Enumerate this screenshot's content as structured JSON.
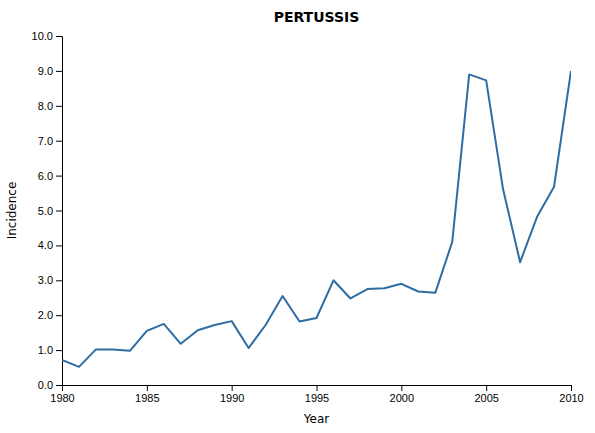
{
  "chart_data": {
    "type": "line",
    "title": "PERTUSSIS",
    "xlabel": "Year",
    "ylabel": "Incidence",
    "color": "#2E6DA4",
    "x": [
      1980,
      1981,
      1982,
      1983,
      1984,
      1985,
      1986,
      1987,
      1988,
      1989,
      1990,
      1991,
      1992,
      1993,
      1994,
      1995,
      1996,
      1997,
      1998,
      1999,
      2000,
      2001,
      2002,
      2003,
      2004,
      2005,
      2006,
      2007,
      2008,
      2009,
      2010
    ],
    "values": [
      0.72,
      0.52,
      1.02,
      1.02,
      0.98,
      1.55,
      1.75,
      1.18,
      1.57,
      1.72,
      1.83,
      1.06,
      1.72,
      2.55,
      1.82,
      1.92,
      3.0,
      2.48,
      2.75,
      2.77,
      2.9,
      2.68,
      2.64,
      4.1,
      8.9,
      8.73,
      5.6,
      3.52,
      4.82,
      5.68,
      9.0
    ],
    "xlim": [
      1980,
      2010
    ],
    "ylim": [
      0,
      10
    ],
    "xticks": [
      1980,
      1985,
      1990,
      1995,
      2000,
      2005,
      2010
    ],
    "yticks": [
      {
        "value": 0,
        "label": "0.0"
      },
      {
        "value": 1,
        "label": "1.0"
      },
      {
        "value": 2,
        "label": "2.0"
      },
      {
        "value": 3,
        "label": "3.0"
      },
      {
        "value": 4,
        "label": "4.0"
      },
      {
        "value": 5,
        "label": "5.0"
      },
      {
        "value": 6,
        "label": "6.0"
      },
      {
        "value": 7,
        "label": "7.0"
      },
      {
        "value": 8,
        "label": "8.0"
      },
      {
        "value": 9,
        "label": "9.0"
      },
      {
        "value": 10,
        "label": "10.0"
      }
    ],
    "grid": false
  }
}
